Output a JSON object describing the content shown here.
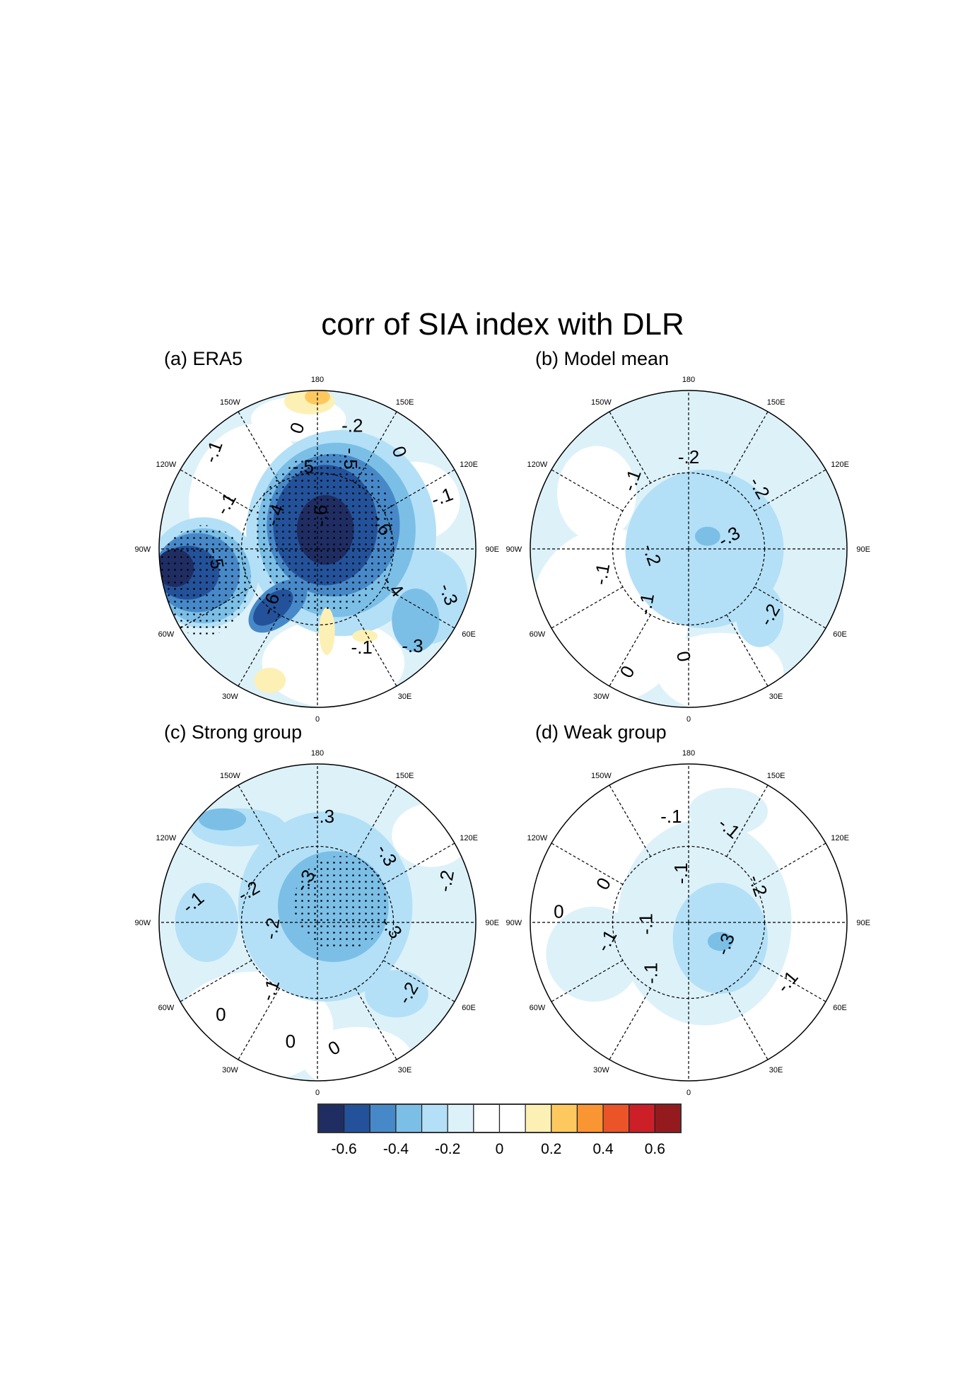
{
  "chart_data": {
    "type": "heatmap",
    "projection": "north-polar-stereographic",
    "title": "corr of SIA index with DLR",
    "longitude_labels": [
      "180",
      "150E",
      "120E",
      "90E",
      "60E",
      "30E",
      "0",
      "30W",
      "60W",
      "90W",
      "120W",
      "150W"
    ],
    "panels": [
      {
        "title": "(a) ERA5",
        "contour_labels": [
          "-.1",
          "0",
          "-.2",
          "0",
          "-.5",
          "-.5",
          "-.1",
          "-.4",
          "-.6",
          "-.6",
          "-.1",
          "-.5",
          "-.6",
          "-.4",
          "-.3",
          "-.1",
          "-.3"
        ],
        "stippling": true
      },
      {
        "title": "(b) Model mean",
        "contour_labels": [
          "-.2",
          "-.1",
          "-.2",
          "-.3",
          "-.2",
          "-.1",
          "-.1",
          "-.2",
          "0",
          "0"
        ],
        "stippling": false
      },
      {
        "title": "(c) Strong group",
        "contour_labels": [
          "-.3",
          "-.3",
          "-.3",
          "-.2",
          "-.2",
          "-.1",
          "-.2",
          "-.3",
          "-.1",
          "-.2",
          "0",
          "0",
          "0"
        ],
        "stippling": true
      },
      {
        "title": "(d) Weak group",
        "contour_labels": [
          "-.1",
          "-.1",
          "-.1",
          "-.2",
          "0",
          "0",
          "-.1",
          "-.1",
          "-.3",
          "-.1",
          "-.1"
        ],
        "stippling": false
      }
    ],
    "colorbar": {
      "levels": [
        -0.6,
        -0.5,
        -0.4,
        -0.3,
        -0.2,
        -0.1,
        0,
        0.1,
        0.2,
        0.3,
        0.4,
        0.5,
        0.6
      ],
      "colors": [
        "#1f2d63",
        "#23529a",
        "#4789c8",
        "#7bbfe7",
        "#b3e0f7",
        "#ddf1f9",
        "#ffffff",
        "#ffffff",
        "#fdf0b5",
        "#fdc95f",
        "#f99532",
        "#ea5428",
        "#cc1f27",
        "#951a1d"
      ],
      "tick_labels": [
        "-0.6",
        "-0.4",
        "-0.2",
        "0",
        "0.2",
        "0.4",
        "0.6"
      ]
    }
  }
}
